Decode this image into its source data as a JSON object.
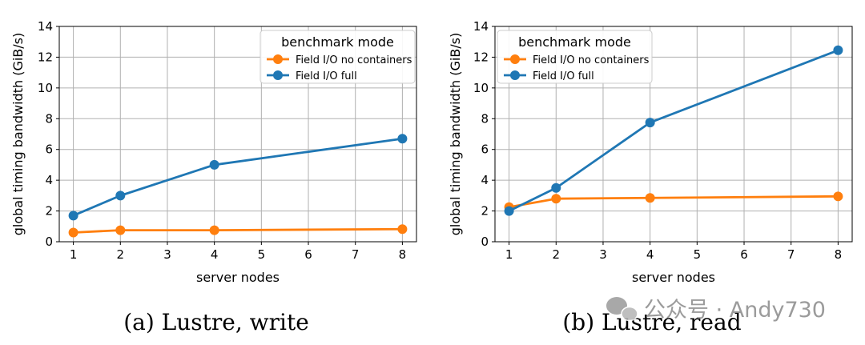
{
  "chart_data": [
    {
      "type": "line",
      "title": "",
      "caption": "(a) Lustre, write",
      "xlabel": "server nodes",
      "ylabel": "global timing bandwidth (GiB/s)",
      "xlim": [
        0.7,
        8.3
      ],
      "ylim": [
        0,
        14
      ],
      "xticks": [
        1,
        2,
        3,
        4,
        5,
        6,
        7,
        8
      ],
      "yticks": [
        0,
        2,
        4,
        6,
        8,
        10,
        12,
        14
      ],
      "grid": true,
      "legend_title": "benchmark mode",
      "legend_position": "top-right",
      "x": [
        1,
        2,
        4,
        8
      ],
      "series": [
        {
          "name": "Field I/O no containers",
          "color": "#ff7f0e",
          "values": [
            0.6,
            0.75,
            0.75,
            0.82
          ]
        },
        {
          "name": "Field I/O full",
          "color": "#1f77b4",
          "values": [
            1.7,
            3.0,
            5.0,
            6.7
          ]
        }
      ]
    },
    {
      "type": "line",
      "title": "",
      "caption": "(b) Lustre, read",
      "xlabel": "server nodes",
      "ylabel": "global timing bandwidth (GiB/s)",
      "xlim": [
        0.7,
        8.3
      ],
      "ylim": [
        0,
        14
      ],
      "xticks": [
        1,
        2,
        3,
        4,
        5,
        6,
        7,
        8
      ],
      "yticks": [
        0,
        2,
        4,
        6,
        8,
        10,
        12,
        14
      ],
      "grid": true,
      "legend_title": "benchmark mode",
      "legend_position": "top-left",
      "x": [
        1,
        2,
        4,
        8
      ],
      "series": [
        {
          "name": "Field I/O no containers",
          "color": "#ff7f0e",
          "values": [
            2.25,
            2.8,
            2.85,
            2.95
          ]
        },
        {
          "name": "Field I/O full",
          "color": "#1f77b4",
          "values": [
            2.0,
            3.5,
            7.75,
            12.45
          ]
        }
      ]
    }
  ],
  "watermark": {
    "text": "公众号 · Andy730",
    "icon": "wechat-icon"
  }
}
